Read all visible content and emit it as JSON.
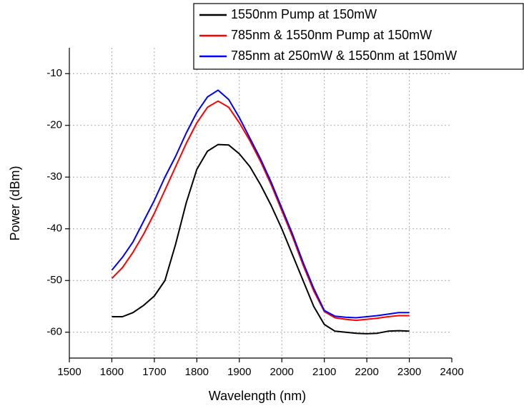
{
  "chart_data": {
    "type": "line",
    "x_label": "Wavelength (nm)",
    "y_label": "Power (dBm)",
    "x": [
      1600,
      1625,
      1650,
      1675,
      1700,
      1725,
      1750,
      1775,
      1800,
      1825,
      1850,
      1875,
      1900,
      1925,
      1950,
      1975,
      2000,
      2025,
      2050,
      2075,
      2100,
      2125,
      2150,
      2175,
      2200,
      2225,
      2250,
      2275,
      2300
    ],
    "series": [
      {
        "name": "1550nm Pump at 150mW",
        "color": "#000000",
        "values": [
          -57,
          -57,
          -56.2,
          -54.8,
          -53,
          -50,
          -43,
          -35,
          -28.5,
          -25,
          -23.7,
          -23.8,
          -25.5,
          -28,
          -31.5,
          -35.5,
          -40,
          -45,
          -50,
          -55,
          -58.5,
          -59.8,
          -60,
          -60.2,
          -60.3,
          -60.2,
          -59.8,
          -59.7,
          -59.8
        ]
      },
      {
        "name": "785nm & 1550nm Pump at 150mW",
        "color": "#ff0000",
        "values": [
          -49.6,
          -47.5,
          -44.5,
          -41,
          -37,
          -32.5,
          -28,
          -23.5,
          -19.5,
          -16.5,
          -15.3,
          -16.5,
          -19.5,
          -23,
          -27,
          -31.5,
          -36.5,
          -41.5,
          -47,
          -52,
          -56,
          -57.2,
          -57.5,
          -57.7,
          -57.5,
          -57.3,
          -57,
          -56.8,
          -56.8
        ]
      },
      {
        "name": "785nm at 250mW & 1550nm at 150mW",
        "color": "#0000ff",
        "values": [
          -48,
          -45.5,
          -42.5,
          -38.5,
          -34.5,
          -30,
          -26,
          -21.5,
          -17.5,
          -14.5,
          -13.2,
          -15,
          -18.5,
          -22.5,
          -26.5,
          -31,
          -36,
          -41,
          -46.5,
          -51.5,
          -55.8,
          -56.9,
          -57.1,
          -57.2,
          -57,
          -56.8,
          -56.5,
          -56.2,
          -56.2
        ]
      }
    ],
    "xlim": [
      1500,
      2400
    ],
    "xticks": [
      1500,
      1600,
      1700,
      1800,
      1900,
      2000,
      2100,
      2200,
      2300,
      2400
    ],
    "ylim": [
      -65,
      -5
    ],
    "yticks": [
      -60,
      -50,
      -40,
      -30,
      -20,
      -10
    ],
    "grid": true,
    "legend": "upper-right"
  }
}
